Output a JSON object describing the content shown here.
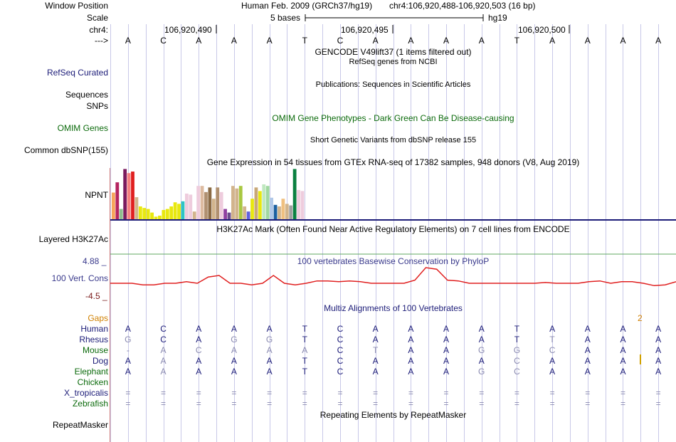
{
  "colors": {
    "navy": "#1c1c78",
    "green": "#0b6a0b",
    "purple": "#3a3a8c",
    "maroon": "#7a1a1a",
    "gaps": "#d08000",
    "grid": "#c8c8e8",
    "phylop": "#e02020",
    "expr_base": "#1c1c78",
    "h3k_line": "#5fa85f"
  },
  "header": {
    "window_position_label": "Window Position",
    "scale_label": "Scale",
    "chr_label": "chr4:",
    "strand_label": "--->",
    "assembly": "Human Feb. 2009 (GRCh37/hg19)",
    "position": "chr4:106,920,488-106,920,503 (16 bp)",
    "scale_text": "5 bases",
    "scale_db": "hg19",
    "ticks": [
      "106,920,490",
      "106,920,495",
      "106,920,500"
    ]
  },
  "sequence": [
    "A",
    "C",
    "A",
    "A",
    "A",
    "T",
    "C",
    "A",
    "A",
    "A",
    "A",
    "T",
    "A",
    "A",
    "A",
    "A"
  ],
  "tracks": {
    "gencode_title": "GENCODE V49lift37 (1 items filtered out)",
    "refseq_label": "RefSeq Curated",
    "refseq_title": "RefSeq genes from NCBI",
    "sequences_label": "Sequences",
    "publications_title": "Publications: Sequences in Scientific Articles",
    "snps_label": "SNPs",
    "omim_title": "OMIM Gene Phenotypes - Dark Green Can Be Disease-causing",
    "omim_label": "OMIM Genes",
    "dbsnp_title": "Short Genetic Variants from dbSNP release 155",
    "dbsnp_label": "Common dbSNP(155)",
    "gtex_title": "Gene Expression in 54 tissues from GTEx RNA-seq of 17382 samples, 948 donors (V8, Aug 2019)",
    "gtex_label": "NPNT",
    "h3k27ac_title": "H3K27Ac Mark (Often Found Near Active Regulatory Elements) on 7 cell lines from ENCODE",
    "h3k27ac_label": "Layered H3K27Ac",
    "phylop_title": "100 vertebrates Basewise Conservation by PhyloP",
    "phylop_label": "100 Vert. Cons",
    "phylop_max": "4.88 _",
    "phylop_min": "-4.5 _",
    "multiz_title": "Multiz Alignments of 100 Vertebrates",
    "gaps_label": "Gaps",
    "gaps_value": "2",
    "repeat_title": "Repeating Elements by RepeatMasker",
    "repeat_label": "RepeatMasker"
  },
  "gtex": {
    "values": [
      0.52,
      0.72,
      0.2,
      0.98,
      0.9,
      0.93,
      0.43,
      0.25,
      0.22,
      0.2,
      0.13,
      0.05,
      0.07,
      0.18,
      0.2,
      0.25,
      0.33,
      0.3,
      0.35,
      0.5,
      0.48,
      0.15,
      0.65,
      0.65,
      0.53,
      0.62,
      0.4,
      0.62,
      0.53,
      0.2,
      0.13,
      0.65,
      0.6,
      0.65,
      0.25,
      0.15,
      0.4,
      0.62,
      0.55,
      0.68,
      0.65,
      0.42,
      0.28,
      0.25,
      0.4,
      0.3,
      0.27,
      0.98,
      0.57,
      0.55
    ],
    "colors": [
      "#f7a55b",
      "#b5245f",
      "#8fbc8f",
      "#7b1b5f",
      "#f58080",
      "#e02020",
      "#d2b48c",
      "#e8e810",
      "#e8e810",
      "#e8e810",
      "#e8e810",
      "#e8e810",
      "#e8e810",
      "#e8e810",
      "#e8e810",
      "#e8e810",
      "#e8e810",
      "#e8e810",
      "#2ec4c4",
      "#eeccdd",
      "#eeccdd",
      "#d2b48c",
      "#eeccdd",
      "#ddbba0",
      "#b09070",
      "#8b6b45",
      "#d2b48c",
      "#b09070",
      "#eeccdd",
      "#9040a0",
      "#6b4b8b",
      "#d2b48c",
      "#d2b48c",
      "#a8c840",
      "#d2b48c",
      "#6060e0",
      "#e8e810",
      "#c8a878",
      "#e8e810",
      "#c0e8c0",
      "#a0d8a0",
      "#b0c8e8",
      "#1c60a0",
      "#d2b48c",
      "#f0c080",
      "#d2b48c",
      "#a0a0a0",
      "#0a8040",
      "#eeccdd",
      "#eeccdd"
    ]
  },
  "phylop_values": [
    0,
    0,
    0,
    -0.1,
    -0.1,
    0,
    0,
    0.1,
    0,
    0.4,
    0.5,
    0,
    0,
    -0.1,
    0,
    0.5,
    0,
    -0.1,
    0,
    0.15,
    0.15,
    0.1,
    0.15,
    0.1,
    0,
    0,
    0,
    0,
    0.2,
    1,
    0.9,
    0.2,
    0.15,
    0,
    0,
    0,
    0,
    0,
    0,
    0,
    0.05,
    0,
    0,
    0,
    0.1,
    0.15,
    0,
    0.1,
    0.1,
    0,
    -0.15,
    -0.1,
    0.1
  ],
  "multiz": [
    {
      "species": "Human",
      "bases": [
        "A",
        "C",
        "A",
        "A",
        "A",
        "T",
        "C",
        "A",
        "A",
        "A",
        "A",
        "T",
        "A",
        "A",
        "A",
        "A"
      ],
      "kind": [
        "s",
        "s",
        "s",
        "s",
        "s",
        "s",
        "s",
        "s",
        "s",
        "s",
        "s",
        "s",
        "s",
        "s",
        "s",
        "s"
      ]
    },
    {
      "species": "Rhesus",
      "bases": [
        "G",
        "C",
        "A",
        "G",
        "G",
        "T",
        "C",
        "A",
        "A",
        "A",
        "A",
        "T",
        "T",
        "A",
        "A",
        "A"
      ],
      "kind": [
        "g",
        "s",
        "s",
        "g",
        "g",
        "s",
        "s",
        "s",
        "s",
        "s",
        "s",
        "s",
        "g",
        "s",
        "s",
        "s"
      ]
    },
    {
      "species": "Mouse",
      "bases": [
        "-",
        "A",
        "C",
        "A",
        "A",
        "A",
        "C",
        "T",
        "A",
        "A",
        "G",
        "G",
        "C",
        "A",
        "A",
        "A"
      ],
      "kind": [
        "g",
        "g",
        "g",
        "g",
        "g",
        "g",
        "s",
        "g",
        "s",
        "s",
        "g",
        "g",
        "g",
        "s",
        "s",
        "s"
      ]
    },
    {
      "species": "Dog",
      "bases": [
        "A",
        "A",
        "A",
        "A",
        "A",
        "T",
        "C",
        "A",
        "A",
        "A",
        "A",
        "C",
        "A",
        "A",
        "A",
        "A"
      ],
      "kind": [
        "s",
        "g",
        "s",
        "s",
        "s",
        "s",
        "s",
        "s",
        "s",
        "s",
        "s",
        "g",
        "s",
        "s",
        "s",
        "s"
      ]
    },
    {
      "species": "Elephant",
      "bases": [
        "A",
        "A",
        "A",
        "A",
        "A",
        "T",
        "C",
        "A",
        "A",
        "A",
        "G",
        "C",
        "A",
        "A",
        "A",
        "A"
      ],
      "kind": [
        "s",
        "g",
        "s",
        "s",
        "s",
        "s",
        "s",
        "s",
        "s",
        "s",
        "g",
        "g",
        "s",
        "s",
        "s",
        "s"
      ]
    },
    {
      "species": "Chicken",
      "bases": [],
      "kind": []
    },
    {
      "species": "X_tropicalis",
      "bases": [
        "=",
        "=",
        "=",
        "=",
        "=",
        "=",
        "=",
        "=",
        "=",
        "=",
        "=",
        "=",
        "=",
        "=",
        "=",
        "="
      ],
      "kind": [
        "g",
        "g",
        "g",
        "g",
        "g",
        "g",
        "g",
        "g",
        "g",
        "g",
        "g",
        "g",
        "g",
        "g",
        "g",
        "g"
      ]
    },
    {
      "species": "Zebrafish",
      "bases": [
        "=",
        "=",
        "=",
        "=",
        "=",
        "=",
        "=",
        "=",
        "=",
        "=",
        "=",
        "=",
        "=",
        "=",
        "=",
        "="
      ],
      "kind": [
        "g",
        "g",
        "g",
        "g",
        "g",
        "g",
        "g",
        "g",
        "g",
        "g",
        "g",
        "g",
        "g",
        "g",
        "g",
        "g"
      ]
    }
  ],
  "species_colors": [
    "#1c1c78",
    "#1c1c78",
    "#0b6a0b",
    "#1c1c78",
    "#0b6a0b",
    "#0b6a0b",
    "#1c1c78",
    "#0b6a0b"
  ]
}
